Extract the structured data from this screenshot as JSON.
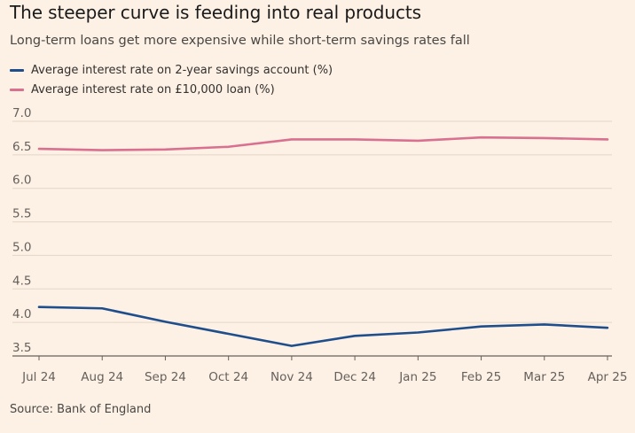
{
  "chart_data": {
    "type": "line",
    "title": "The steeper curve is feeding into real products",
    "subtitle": "Long-term loans get more expensive while short-term savings rates fall",
    "categories": [
      "Jul 24",
      "Aug 24",
      "Sep 24",
      "Oct 24",
      "Nov 24",
      "Dec 24",
      "Jan 25",
      "Feb 25",
      "Mar 25",
      "Apr 25"
    ],
    "series": [
      {
        "name": "Average interest rate on 2-year savings account (%)",
        "color": "#1f4e8c",
        "values": [
          4.23,
          4.21,
          4.01,
          3.83,
          3.65,
          3.8,
          3.85,
          3.94,
          3.97,
          3.92
        ]
      },
      {
        "name": "Average interest rate on £10,000 loan (%)",
        "color": "#d9708f",
        "values": [
          6.59,
          6.57,
          6.58,
          6.62,
          6.73,
          6.73,
          6.71,
          6.76,
          6.75,
          6.73
        ]
      }
    ],
    "yticks": [
      "7.0",
      "6.5",
      "6.0",
      "5.5",
      "5.0",
      "4.5",
      "4.0",
      "3.5"
    ],
    "ylim": [
      3.5,
      7.0
    ],
    "xlabel": "",
    "ylabel": "",
    "grid": true,
    "source": "Source: Bank of England"
  }
}
